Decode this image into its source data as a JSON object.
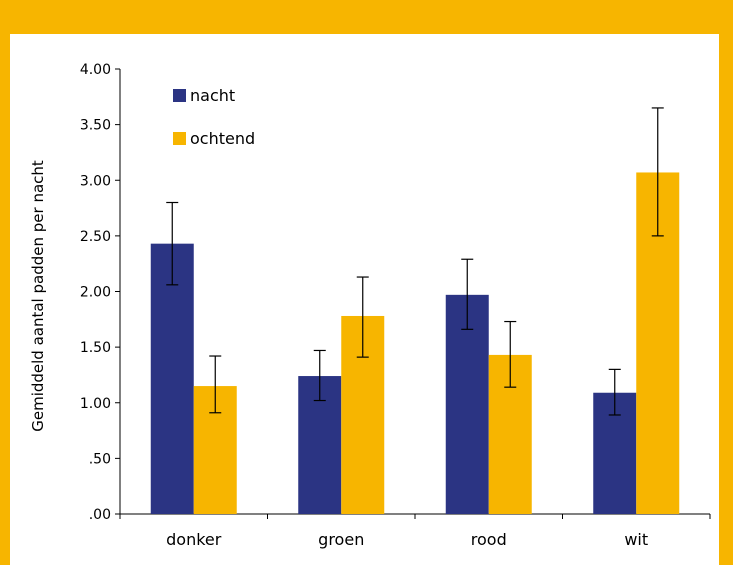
{
  "colors": {
    "frame": "#f7b500",
    "nacht": "#2b3483",
    "ochtend": "#f7b500"
  },
  "chart_data": {
    "type": "bar",
    "title": "",
    "xlabel": "",
    "ylabel": "Gemiddeld aantal padden per nacht",
    "ylim": [
      0,
      4
    ],
    "yticks": [
      ".00",
      ".50",
      "1.00",
      "1.50",
      "2.00",
      "2.50",
      "3.00",
      "3.50",
      "4.00"
    ],
    "categories": [
      "donker",
      "groen",
      "rood",
      "wit"
    ],
    "series": [
      {
        "name": "nacht",
        "color": "#2b3483",
        "values": [
          2.43,
          1.24,
          1.97,
          1.09
        ],
        "error_low": [
          2.06,
          1.02,
          1.66,
          0.89
        ],
        "error_high": [
          2.8,
          1.47,
          2.29,
          1.3
        ]
      },
      {
        "name": "ochtend",
        "color": "#f7b500",
        "values": [
          1.15,
          1.78,
          1.43,
          3.07
        ],
        "error_low": [
          0.91,
          1.41,
          1.14,
          2.5
        ],
        "error_high": [
          1.42,
          2.13,
          1.73,
          3.65
        ]
      }
    ],
    "legend_position": "top-left",
    "grid": false
  }
}
